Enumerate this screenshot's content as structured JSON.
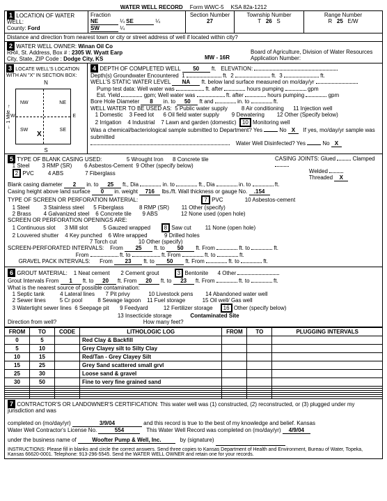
{
  "form": {
    "title": "WATER WELL RECORD",
    "form_no": "Form WWC-5",
    "ksa": "KSA 82a-1212"
  },
  "location": {
    "section_num": "1",
    "section_label": "LOCATION OF WATER WELL:",
    "county_label": "County:",
    "county": "Ford",
    "fraction_label": "Fraction",
    "q1": "NE",
    "q1f": "¼",
    "q2": "SE",
    "q2f": "¼",
    "q3": "SW",
    "q3f": "¼",
    "section_no_label": "Section Number",
    "section_no": "27",
    "township_label": "Township Number",
    "township_t": "T",
    "township": "26",
    "township_s": "S",
    "range_label": "Range Number",
    "range_r": "R",
    "range": "25",
    "range_ew": "E/W",
    "dist_label": "Distance and direction from nearest town or city or street address of well if located within city?"
  },
  "owner": {
    "section_num": "2",
    "section_label": "WATER WELL OWNER:",
    "name": "Winan Oil Co",
    "addr_label": "RR#, St. Address, Box #   :",
    "addr": "2305 W. Wyatt Earp",
    "city_label": "City, State, ZIP Code    :",
    "city": "Dodge City, KS",
    "well_id": "MW - 16R",
    "board": "Board of Agriculture, Division of Water Resources",
    "app_label": "Application Number:"
  },
  "locate": {
    "section_num": "3",
    "section_label": "LOCATE WELL'S LOCATION WITH AN \"X\" IN SECTION BOX:",
    "n": "N",
    "s": "S",
    "e": "E",
    "w": "W",
    "ne": "NE",
    "nw": "NW",
    "se": "SE",
    "sw": "SW",
    "x": "X",
    "mile": "← 1 Mile →"
  },
  "depth": {
    "section_num": "4",
    "completed_label": "DEPTH OF COMPLETED WELL",
    "completed": "50",
    "ft": "ft.",
    "elev_label": "ELEVATION:",
    "gw_label": "Depth(s) Groundwater Encountered",
    "gw1": "1",
    "gw2": "2",
    "gw3": "3",
    "static_label": "WELL'S STATIC WATER LEVEL",
    "static": "NA",
    "static_desc": "ft. below land surface measured on mo/day/yr",
    "pump_label": "Pump test data:",
    "pump_yield": "Well water was",
    "after": "ft. after",
    "pumping": "hours pumping",
    "gpm": "gpm",
    "est_label": "Est. Yield",
    "est_desc": "gpm;  Well water was",
    "bore_label": "Bore Hole Diameter",
    "bore": "8",
    "into": "in. to",
    "bore_to": "50",
    "andto": "ft and",
    "into2": "in. to",
    "use_label": "WELL WATER TO BE USED AS:",
    "uses": [
      "1  Domestic",
      "3 Feed lot",
      "5 Public water supply",
      "8  Air conditioning",
      "11 Injection well",
      "2  Irrigation",
      "4 Industrial",
      "6  Oil field water supply",
      "9  Dewatering",
      "12  Other (Specify below)",
      "",
      "",
      "7  Lawn and garden (domestic)",
      "10",
      "Monitoring well"
    ],
    "use_10_label": "Monitoring well",
    "chem_label": "Was a chemical/bacteriological sample submitted to Department?  Yes",
    "no": "No",
    "x": "X",
    "chem_if": "If yes, mo/day/yr sample was submitted",
    "disinfect_label": "Water Well Disinfected?  Yes"
  },
  "casing": {
    "section_num": "5",
    "section_label": "TYPE OF BLANK CASING USED:",
    "opts": [
      "1   Steel",
      "3   RMP (SR)",
      "5   Wrought Iron",
      "8   Concrete tile",
      "2",
      "PVC",
      "4   ABS",
      "6   Asbestos-Cement",
      "9   Other (specify below)",
      "7   Fiberglass"
    ],
    "joints_label": "CASING JOINTS:  Glued",
    "clamped": "Clamped",
    "welded": "Welded",
    "threaded": "Threaded",
    "x": "X",
    "dia_label": "Blank casing diameter",
    "dia": "2",
    "into": "in. to",
    "dia_to": "25",
    "ft": "ft., Dia",
    "height_label": "Casing height above land surface",
    "height": "0",
    "weight_label": "in.  weight",
    "weight": "716",
    "lbsft": "lbs./ft.  Wall thickness or gauge No.",
    "gauge": ".154",
    "screen_label": "TYPE OF SCREEN OR PERFORATION MATERIAL:",
    "screen_opts": [
      "1   Steel",
      "3   Stainless steel",
      "5   Fiberglass",
      "8   RMP (SR)",
      "11  Other (specify)",
      "2   Brass",
      "4   Galvanized steel",
      "6   Concrete tile",
      "9   ABS",
      "12   None used (open hole)"
    ],
    "screen_7": "7",
    "screen_pvc": "PVC",
    "screen_10": "10  Asbestos-cement",
    "openings_label": "SCREEN OR PERFORATION OPENINGS ARE:",
    "open_opts": [
      "1   Continuous slot",
      "3   Mill slot",
      "5   Gauzed wrapped",
      "8",
      "Saw cut",
      "11   None (open hole)",
      "2   Louvered shutter",
      "4   Key punched",
      "6   Wire wrapped",
      "9   Drilled holes",
      "7   Torch cut",
      "10  Other (specify)"
    ],
    "perf_label": "SCREEN-PERFORATED INTERVALS:",
    "from": "From",
    "to": "ft. to",
    "fromto": "ft.   From",
    "perf_from": "25",
    "perf_to": "50",
    "gravel_label": "GRAVEL PACK INTERVALS:",
    "gravel_from": "23",
    "gravel_to": "50"
  },
  "grout": {
    "section_num": "6",
    "section_label": "GROUT MATERIAL:",
    "opts": [
      "1  Neat cement",
      "2  Cement grout",
      "3",
      "Bentonite",
      "4  Other"
    ],
    "interval_label": "Grout Intervals  From",
    "from": "1",
    "to_label": "ft. to",
    "to": "20",
    "from2_label": "ft.    From",
    "from2": "20",
    "to2": "23",
    "contam_label": "What is the nearest source of possible contamination:",
    "contam_opts": [
      "1   Septic tank",
      "4   Lateral lines",
      "7   Pit privy",
      "10   Livestock pens",
      "14  Abandoned water well",
      "2   Sewer lines",
      "5   Cr   pool",
      "8   Sewage lagoon",
      "11   Fuel storage",
      "15  Oil well/ Gas well",
      "3   Watertight sewer lines",
      "6   Seepage pit",
      "9   Feedyard",
      "12   Fertilizer storage",
      "16",
      "Other (specify below)",
      "",
      "",
      "",
      "13   Insecticide storage",
      "",
      "Contaminated Site"
    ],
    "dir_label": "Direction from well?",
    "feet_label": "How many feet?"
  },
  "log": {
    "headers": [
      "FROM",
      "TO",
      "CODE",
      "LITHOLOGIC LOG",
      "FROM",
      "TO",
      "PLUGGING INTERVALS"
    ],
    "rows": [
      {
        "from": "0",
        "to": "5",
        "code": "",
        "lith": "Red Clay &  Backfill",
        "pf": "",
        "pt": "",
        "pi": ""
      },
      {
        "from": "5",
        "to": "10",
        "code": "",
        "lith": "Grey Clayey silt to Silty Clay",
        "pf": "",
        "pt": "",
        "pi": ""
      },
      {
        "from": "10",
        "to": "15",
        "code": "",
        "lith": "Red/Tan - Grey Clayey Silt",
        "pf": "",
        "pt": "",
        "pi": ""
      },
      {
        "from": "15",
        "to": "25",
        "code": "",
        "lith": "Grey Sand scattered small grvl",
        "pf": "",
        "pt": "",
        "pi": ""
      },
      {
        "from": "25",
        "to": "30",
        "code": "",
        "lith": "Loose sand &  gravel",
        "pf": "",
        "pt": "",
        "pi": ""
      },
      {
        "from": "30",
        "to": "50",
        "code": "",
        "lith": "Fine to very fine grained sand",
        "pf": "",
        "pt": "",
        "pi": ""
      },
      {
        "from": "",
        "to": "",
        "code": "",
        "lith": "",
        "pf": "",
        "pt": "",
        "pi": ""
      },
      {
        "from": "",
        "to": "",
        "code": "",
        "lith": "",
        "pf": "",
        "pt": "",
        "pi": ""
      },
      {
        "from": "",
        "to": "",
        "code": "",
        "lith": "",
        "pf": "",
        "pt": "",
        "pi": ""
      },
      {
        "from": "",
        "to": "",
        "code": "",
        "lith": "",
        "pf": "",
        "pt": "",
        "pi": ""
      },
      {
        "from": "",
        "to": "",
        "code": "",
        "lith": "",
        "pf": "",
        "pt": "",
        "pi": ""
      },
      {
        "from": "",
        "to": "",
        "code": "",
        "lith": "",
        "pf": "",
        "pt": "",
        "pi": ""
      }
    ]
  },
  "cert": {
    "section_num": "7",
    "label": "CONTRACTOR'S OR LANDOWNER'S CERTIFICATION:  This water well was (1) constructed, (2) reconstructed, or (3) plugged under my jurisdiction and was",
    "completed_label": "completed on (mo/day/yr)",
    "completed": "3/9/04",
    "true_label": "and this record is true to the best of my knowledge and belief.  Kansas",
    "lic_label": "Water Well Contractor's License No.",
    "lic": "554",
    "wwr_label": "This Water Well Record was completed on (mo/day/yr)",
    "wwr_date": "4/9/04",
    "biz_label": "under the business name of",
    "biz": "Woofter Pump & Well, Inc.",
    "sig_label": "by (signature)",
    "instructions": "INSTRUCTIONS:   Please fill in blanks and circle the correct answers.  Send three copies to Kansas Department of Health and Environment, Bureau of Water, Topeka, Kansas 66620-0001.   Telephone:  913-296-5545.   Send the WATER WELL OWNER and retain one for your records."
  }
}
